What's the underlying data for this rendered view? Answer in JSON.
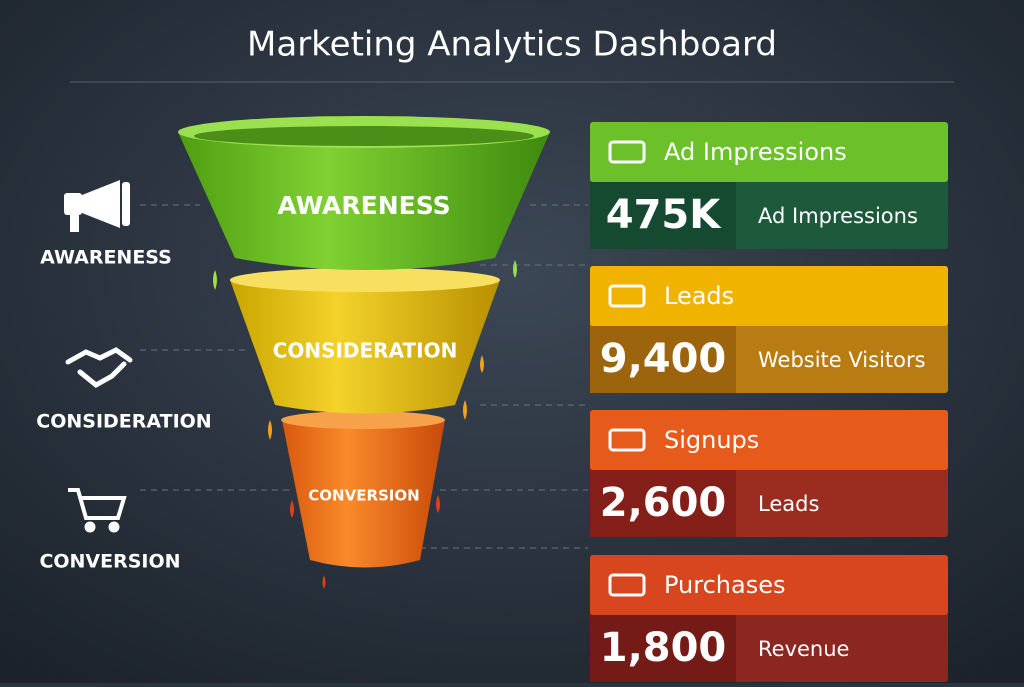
{
  "header": {
    "title": "Marketing Analytics Dashboard"
  },
  "stages": [
    {
      "label": "AWARENESS",
      "funnel_label": "AWARENESS"
    },
    {
      "label": "CONSIDERATION",
      "funnel_label": "CONSIDERATION"
    },
    {
      "label": "CONVERSION",
      "funnel_label": "CONVERSION"
    }
  ],
  "cards": [
    {
      "title": "Ad Impressions",
      "value": "475K",
      "description": "Ad Impressions"
    },
    {
      "title": "Leads",
      "value": "9,400",
      "description": "Website Visitors"
    },
    {
      "title": "Signups",
      "value": "2,600",
      "description": "Leads"
    },
    {
      "title": "Purchases",
      "value": "1,800",
      "description": "Revenue"
    }
  ]
}
